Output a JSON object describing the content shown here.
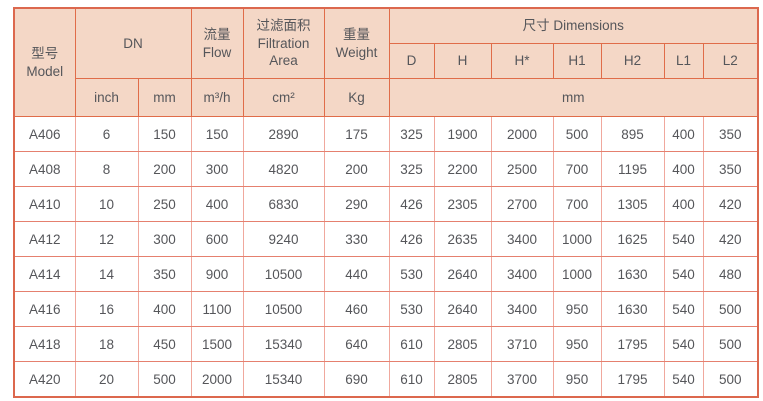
{
  "colors": {
    "header_bg": "#f4d7c6",
    "header_border": "#e06c49",
    "outer_border": "#dc684e",
    "grid_vertical": "#f0a89d",
    "grid_horizontal": "#e5806f",
    "text": "#55565a"
  },
  "header": {
    "model": "型号\nModel",
    "dn": "DN",
    "flow": "流量\nFlow",
    "filtration_area": "过滤面积\nFiltration\nArea",
    "weight": "重量\nWeight",
    "dimensions": "尺寸 Dimensions",
    "dim_cols": [
      "D",
      "H",
      "H*",
      "H1",
      "H2",
      "L1",
      "L2"
    ],
    "units": {
      "inch": "inch",
      "mm": "mm",
      "flow": "m³/h",
      "area": "cm²",
      "weight": "Kg",
      "dims": "mm"
    }
  },
  "rows": [
    [
      "A406",
      "6",
      "150",
      "150",
      "2890",
      "175",
      "325",
      "1900",
      "2000",
      "500",
      "895",
      "400",
      "350"
    ],
    [
      "A408",
      "8",
      "200",
      "300",
      "4820",
      "200",
      "325",
      "2200",
      "2500",
      "700",
      "1195",
      "400",
      "350"
    ],
    [
      "A410",
      "10",
      "250",
      "400",
      "6830",
      "290",
      "426",
      "2305",
      "2700",
      "700",
      "1305",
      "400",
      "420"
    ],
    [
      "A412",
      "12",
      "300",
      "600",
      "9240",
      "330",
      "426",
      "2635",
      "3400",
      "1000",
      "1625",
      "540",
      "420"
    ],
    [
      "A414",
      "14",
      "350",
      "900",
      "10500",
      "440",
      "530",
      "2640",
      "3400",
      "1000",
      "1630",
      "540",
      "480"
    ],
    [
      "A416",
      "16",
      "400",
      "1100",
      "10500",
      "460",
      "530",
      "2640",
      "3400",
      "950",
      "1630",
      "540",
      "500"
    ],
    [
      "A418",
      "18",
      "450",
      "1500",
      "15340",
      "640",
      "610",
      "2805",
      "3710",
      "950",
      "1795",
      "540",
      "500"
    ],
    [
      "A420",
      "20",
      "500",
      "2000",
      "15340",
      "690",
      "610",
      "2805",
      "3700",
      "950",
      "1795",
      "540",
      "500"
    ]
  ]
}
